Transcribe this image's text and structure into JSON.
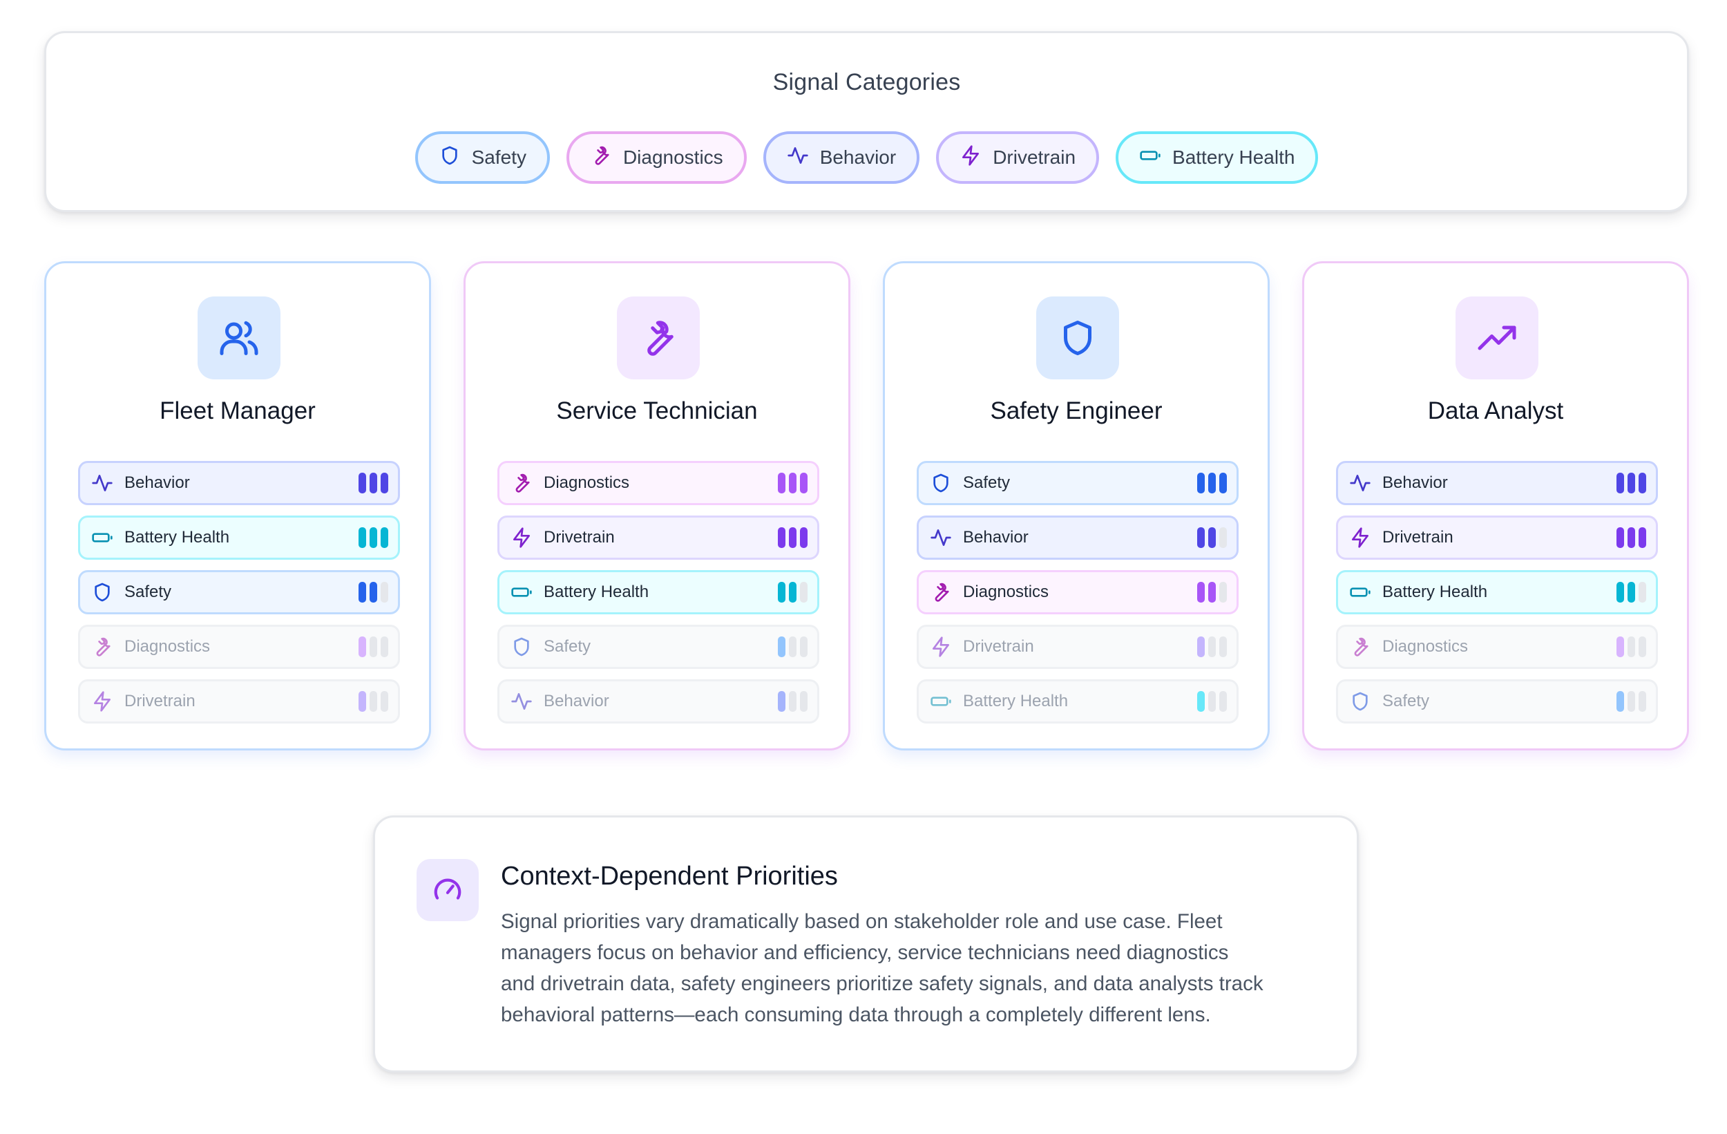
{
  "categories": {
    "title": "Signal Categories",
    "chips": [
      {
        "label": "Safety",
        "icon": "shield-icon",
        "border": "#93c5fd",
        "bg": "#eff6ff",
        "color": "#1d4ed8"
      },
      {
        "label": "Diagnostics",
        "icon": "wrench-icon",
        "border": "#e9a8f0",
        "bg": "#fdf4ff",
        "color": "#a21caf"
      },
      {
        "label": "Behavior",
        "icon": "activity-icon",
        "border": "#a5b4fc",
        "bg": "#eef2ff",
        "color": "#4338ca"
      },
      {
        "label": "Drivetrain",
        "icon": "zap-icon",
        "border": "#c4b5fd",
        "bg": "#f5f3ff",
        "color": "#7e22ce"
      },
      {
        "label": "Battery Health",
        "icon": "battery-icon",
        "border": "#67e8f9",
        "bg": "#ecfeff",
        "color": "#0891b2"
      }
    ]
  },
  "signal_styles": {
    "Safety": {
      "icon": "shield-icon",
      "color": "#1d4ed8",
      "bar": "#2563eb",
      "bar_faded": "#93c5fd",
      "bg": "#eff6ff",
      "border": "#bfdbfe"
    },
    "Diagnostics": {
      "icon": "wrench-icon",
      "color": "#a21caf",
      "bar": "#a855f7",
      "bar_faded": "#d8b4fe",
      "bg": "#fdf4ff",
      "border": "#f5d0fe"
    },
    "Behavior": {
      "icon": "activity-icon",
      "color": "#4338ca",
      "bar": "#4f46e5",
      "bar_faded": "#a5b4fc",
      "bg": "#eef2ff",
      "border": "#c7d2fe"
    },
    "Drivetrain": {
      "icon": "zap-icon",
      "color": "#7e22ce",
      "bar": "#7c3aed",
      "bar_faded": "#c4b5fd",
      "bg": "#f5f3ff",
      "border": "#ddd6fe"
    },
    "Battery Health": {
      "icon": "battery-icon",
      "color": "#0891b2",
      "bar": "#06b6d4",
      "bar_faded": "#67e8f9",
      "bg": "#ecfeff",
      "border": "#a5f3fc"
    }
  },
  "roles": [
    {
      "title": "Fleet Manager",
      "icon": "users-icon",
      "accent": "#2563eb",
      "icon_bg": "#dbeafe",
      "border": "#bfdbfe",
      "signals": [
        {
          "name": "Behavior",
          "level": 3,
          "emphasis": "high"
        },
        {
          "name": "Battery Health",
          "level": 3,
          "emphasis": "high"
        },
        {
          "name": "Safety",
          "level": 2,
          "emphasis": "high"
        },
        {
          "name": "Diagnostics",
          "level": 1,
          "emphasis": "low"
        },
        {
          "name": "Drivetrain",
          "level": 1,
          "emphasis": "low"
        }
      ]
    },
    {
      "title": "Service Technician",
      "icon": "wrench-icon",
      "accent": "#9333ea",
      "icon_bg": "#f3e8ff",
      "border": "#f0c9f7",
      "signals": [
        {
          "name": "Diagnostics",
          "level": 3,
          "emphasis": "high"
        },
        {
          "name": "Drivetrain",
          "level": 3,
          "emphasis": "high"
        },
        {
          "name": "Battery Health",
          "level": 2,
          "emphasis": "high"
        },
        {
          "name": "Safety",
          "level": 1,
          "emphasis": "low"
        },
        {
          "name": "Behavior",
          "level": 1,
          "emphasis": "low"
        }
      ]
    },
    {
      "title": "Safety Engineer",
      "icon": "shield-icon",
      "accent": "#2563eb",
      "icon_bg": "#dbeafe",
      "border": "#bfdbfe",
      "signals": [
        {
          "name": "Safety",
          "level": 3,
          "emphasis": "high"
        },
        {
          "name": "Behavior",
          "level": 2,
          "emphasis": "high"
        },
        {
          "name": "Diagnostics",
          "level": 2,
          "emphasis": "high"
        },
        {
          "name": "Drivetrain",
          "level": 1,
          "emphasis": "low"
        },
        {
          "name": "Battery Health",
          "level": 1,
          "emphasis": "low"
        }
      ]
    },
    {
      "title": "Data Analyst",
      "icon": "trending-up-icon",
      "accent": "#9333ea",
      "icon_bg": "#f3e8ff",
      "border": "#f0c9f7",
      "signals": [
        {
          "name": "Behavior",
          "level": 3,
          "emphasis": "high"
        },
        {
          "name": "Drivetrain",
          "level": 3,
          "emphasis": "high"
        },
        {
          "name": "Battery Health",
          "level": 2,
          "emphasis": "high"
        },
        {
          "name": "Diagnostics",
          "level": 1,
          "emphasis": "low"
        },
        {
          "name": "Safety",
          "level": 1,
          "emphasis": "low"
        }
      ]
    }
  ],
  "note": {
    "icon": "gauge-icon",
    "title": "Context-Dependent Priorities",
    "lines": [
      "Signal priorities vary dramatically based on stakeholder role and use case. Fleet",
      "managers focus on behavior and efficiency, service technicians need diagnostics",
      "and drivetrain data, safety engineers prioritize safety signals, and data analysts track",
      "behavioral patterns—each consuming data through a completely different lens."
    ]
  }
}
